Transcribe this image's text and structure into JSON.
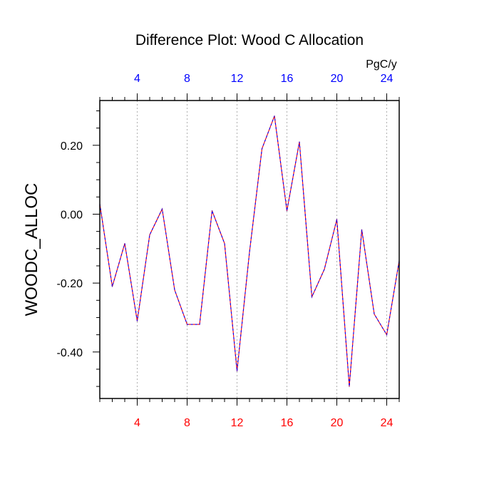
{
  "chart_data": {
    "type": "line",
    "title": "Difference Plot: Wood C Allocation",
    "ylabel": "WOODC_ALLOC",
    "top_axis_unit": "PgC/y",
    "xlim": [
      1,
      25
    ],
    "ylim": [
      -0.535,
      0.33
    ],
    "x_tick_values": [
      4,
      8,
      12,
      16,
      20,
      24
    ],
    "x_tick_labels": [
      "4",
      "8",
      "12",
      "16",
      "20",
      "24"
    ],
    "y_tick_values": [
      0.2,
      0.0,
      -0.2,
      -0.4
    ],
    "y_tick_labels": [
      "0.20",
      "0.00",
      "-0.20",
      "-0.40"
    ],
    "grid": "vertical dashed at x ticks",
    "bottom_tick_color": "#ff0000",
    "top_tick_color": "#0000ff",
    "series": [
      {
        "colors": [
          "#ff0000",
          "#0000ff"
        ],
        "x": [
          1,
          2,
          3,
          4,
          5,
          6,
          7,
          8,
          9,
          10,
          11,
          12,
          13,
          14,
          15,
          16,
          17,
          18,
          19,
          20,
          21,
          22,
          23,
          24,
          25
        ],
        "values": [
          0.03,
          -0.21,
          -0.085,
          -0.31,
          -0.06,
          0.015,
          -0.22,
          -0.32,
          -0.32,
          0.01,
          -0.085,
          -0.455,
          -0.11,
          0.19,
          0.285,
          0.01,
          0.21,
          -0.24,
          -0.16,
          -0.015,
          -0.5,
          -0.045,
          -0.29,
          -0.35,
          -0.135
        ]
      }
    ]
  }
}
